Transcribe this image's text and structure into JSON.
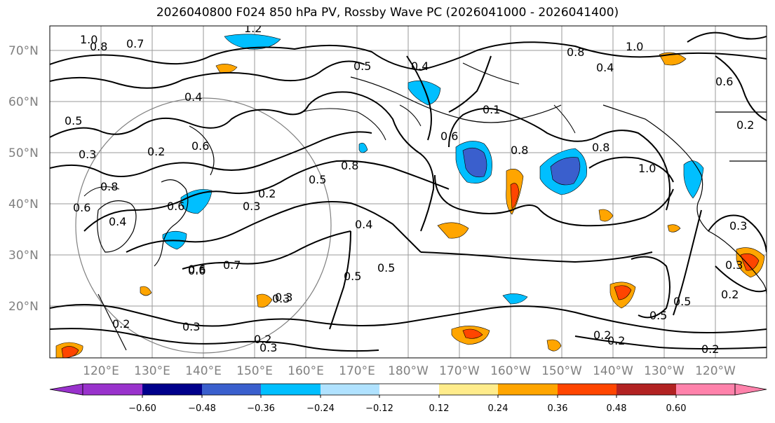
{
  "title": "2026040800 F024 850 hPa PV, Rossby Wave PC (2026041000 - 2026041400)",
  "lat_labels": [
    "70°N",
    "60°N",
    "50°N",
    "40°N",
    "30°N",
    "20°N"
  ],
  "lon_labels": [
    "120°E",
    "130°E",
    "140°E",
    "150°E",
    "160°E",
    "170°E",
    "180°W",
    "170°W",
    "160°W",
    "150°W",
    "140°W",
    "130°W",
    "120°W"
  ],
  "colorbar": {
    "ticks": [
      "−0.60",
      "−0.48",
      "−0.36",
      "−0.24",
      "−0.12",
      "0.12",
      "0.24",
      "0.36",
      "0.48",
      "0.60"
    ],
    "colors": [
      "#9932cc",
      "#00008b",
      "#3a5fcd",
      "#00bfff",
      "#b0e2ff",
      "#ffffff",
      "#ffec8b",
      "#ffa500",
      "#ff4500",
      "#b22222",
      "#ff82ab"
    ]
  },
  "contour_labels": [
    "1.0",
    "0.8",
    "0.7",
    "1.2",
    "0.4",
    "0.6",
    "0.5",
    "0.3",
    "0.2",
    "0.8",
    "0.6",
    "0.4",
    "0.3",
    "0.2",
    "0.6",
    "0.5",
    "0.4",
    "0.3",
    "0.5",
    "0.6",
    "0.7",
    "0.8",
    "0.5",
    "0.4",
    "0.5",
    "0.6",
    "0.8",
    "1.0",
    "0.8",
    "0.1",
    "0.5",
    "0.2",
    "0.3",
    "0.2",
    "0.2",
    "0.3",
    "0.3",
    "0.2",
    "0.3",
    "0.6",
    "1.0",
    "0.8",
    "0.4",
    "0.6",
    "0.3",
    "0.2",
    "0.5",
    "0.2",
    "0.2"
  ]
}
